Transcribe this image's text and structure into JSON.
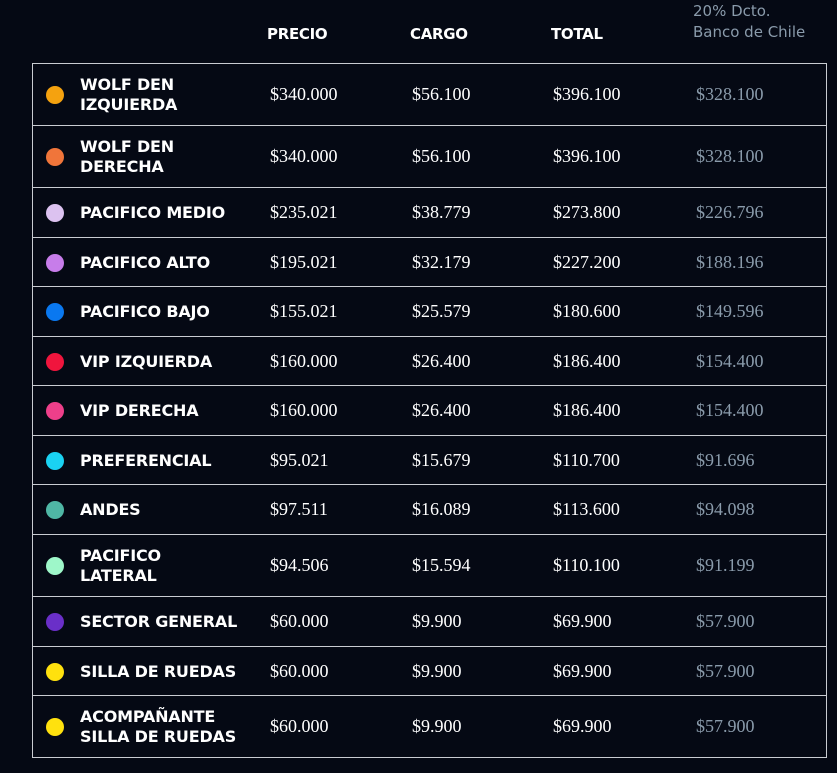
{
  "header": {
    "precio": "PRECIO",
    "cargo": "CARGO",
    "total": "TOTAL",
    "discount_line1": "20% Dcto.",
    "discount_line2": "Banco de Chile"
  },
  "rows": [
    {
      "zone": "WOLF DEN IZQUIERDA",
      "zone_lines": [
        "WOLF DEN",
        "IZQUIERDA"
      ],
      "color": "#f5a20f",
      "precio": "$340.000",
      "cargo": "$56.100",
      "total": "$396.100",
      "descuento": "$328.100"
    },
    {
      "zone": "WOLF DEN DERECHA",
      "zone_lines": [
        "WOLF DEN",
        "DERECHA"
      ],
      "color": "#f0753a",
      "precio": "$340.000",
      "cargo": "$56.100",
      "total": "$396.100",
      "descuento": "$328.100"
    },
    {
      "zone": "PACIFICO MEDIO",
      "zone_lines": [
        "PACIFICO MEDIO"
      ],
      "color": "#dcc2f0",
      "precio": "$235.021",
      "cargo": "$38.779",
      "total": "$273.800",
      "descuento": "$226.796"
    },
    {
      "zone": "PACIFICO ALTO",
      "zone_lines": [
        "PACIFICO ALTO"
      ],
      "color": "#c77dea",
      "precio": "$195.021",
      "cargo": "$32.179",
      "total": "$227.200",
      "descuento": "$188.196"
    },
    {
      "zone": "PACIFICO BAJO",
      "zone_lines": [
        "PACIFICO BAJO"
      ],
      "color": "#0a78f0",
      "precio": "$155.021",
      "cargo": "$25.579",
      "total": "$180.600",
      "descuento": "$149.596"
    },
    {
      "zone": "VIP IZQUIERDA",
      "zone_lines": [
        "VIP IZQUIERDA"
      ],
      "color": "#f0153d",
      "precio": "$160.000",
      "cargo": "$26.400",
      "total": "$186.400",
      "descuento": "$154.400"
    },
    {
      "zone": "VIP DERECHA",
      "zone_lines": [
        "VIP DERECHA"
      ],
      "color": "#ee3f8a",
      "precio": "$160.000",
      "cargo": "$26.400",
      "total": "$186.400",
      "descuento": "$154.400"
    },
    {
      "zone": "PREFERENCIAL",
      "zone_lines": [
        "PREFERENCIAL"
      ],
      "color": "#1ad2f2",
      "precio": "$95.021",
      "cargo": "$15.679",
      "total": "$110.700",
      "descuento": "$91.696"
    },
    {
      "zone": "ANDES",
      "zone_lines": [
        "ANDES"
      ],
      "color": "#4fb7a5",
      "precio": "$97.511",
      "cargo": "$16.089",
      "total": "$113.600",
      "descuento": "$94.098"
    },
    {
      "zone": "PACIFICO LATERAL",
      "zone_lines": [
        "PACIFICO",
        "LATERAL"
      ],
      "color": "#9ef7c9",
      "precio": "$94.506",
      "cargo": "$15.594",
      "total": "$110.100",
      "descuento": "$91.199"
    },
    {
      "zone": "SECTOR GENERAL",
      "zone_lines": [
        "SECTOR GENERAL"
      ],
      "color": "#6a2fc8",
      "precio": "$60.000",
      "cargo": "$9.900",
      "total": "$69.900",
      "descuento": "$57.900"
    },
    {
      "zone": "SILLA DE RUEDAS",
      "zone_lines": [
        "SILLA DE RUEDAS"
      ],
      "color": "#ffe10e",
      "precio": "$60.000",
      "cargo": "$9.900",
      "total": "$69.900",
      "descuento": "$57.900"
    },
    {
      "zone": "ACOMPAÑANTE SILLA DE RUEDAS",
      "zone_lines": [
        "ACOMPAÑANTE",
        "SILLA DE RUEDAS"
      ],
      "color": "#ffe10e",
      "precio": "$60.000",
      "cargo": "$9.900",
      "total": "$69.900",
      "descuento": "$57.900"
    }
  ]
}
